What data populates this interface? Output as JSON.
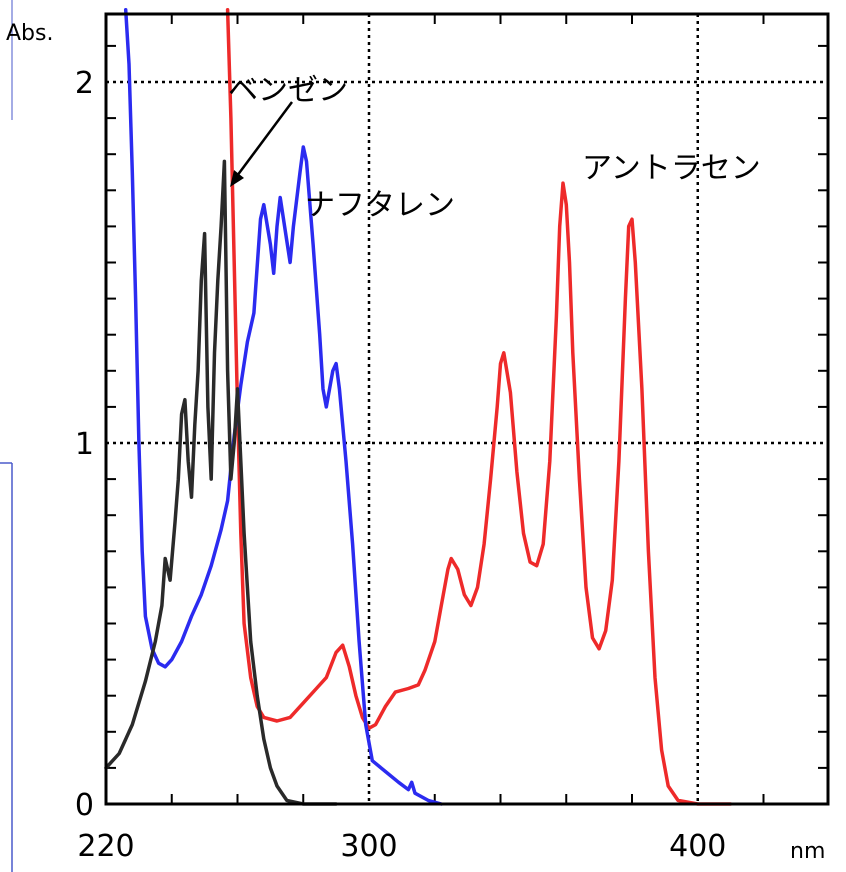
{
  "chart_data": {
    "type": "line",
    "ylabel": "Abs.",
    "xlabel": "nm",
    "xlim": [
      220,
      440
    ],
    "ylim": [
      0,
      2.2
    ],
    "x_ticks": [
      220,
      300,
      400
    ],
    "y_ticks": [
      0,
      1,
      2
    ],
    "grid": true,
    "annotations": [
      "ベンゼン",
      "ナフタレン",
      "アントラセン"
    ],
    "series": [
      {
        "name": "ベンゼン",
        "color": "#2a2a2a",
        "points": [
          [
            220,
            0.1
          ],
          [
            224,
            0.14
          ],
          [
            228,
            0.22
          ],
          [
            232,
            0.34
          ],
          [
            235,
            0.45
          ],
          [
            237,
            0.55
          ],
          [
            238,
            0.68
          ],
          [
            239.5,
            0.62
          ],
          [
            241,
            0.78
          ],
          [
            242,
            0.9
          ],
          [
            243,
            1.08
          ],
          [
            244,
            1.12
          ],
          [
            245,
            0.95
          ],
          [
            246,
            0.85
          ],
          [
            247,
            1.05
          ],
          [
            248,
            1.2
          ],
          [
            249,
            1.45
          ],
          [
            250,
            1.58
          ],
          [
            251,
            1.1
          ],
          [
            252,
            0.9
          ],
          [
            253,
            1.25
          ],
          [
            254,
            1.45
          ],
          [
            255,
            1.6
          ],
          [
            256,
            1.78
          ],
          [
            257,
            1.2
          ],
          [
            258,
            0.9
          ],
          [
            259,
            1.0
          ],
          [
            260,
            1.15
          ],
          [
            261,
            0.95
          ],
          [
            262,
            0.75
          ],
          [
            263,
            0.6
          ],
          [
            264,
            0.45
          ],
          [
            266,
            0.3
          ],
          [
            268,
            0.18
          ],
          [
            270,
            0.1
          ],
          [
            272,
            0.05
          ],
          [
            275,
            0.01
          ],
          [
            280,
            0.0
          ],
          [
            290,
            0.0
          ]
        ]
      },
      {
        "name": "ナフタレン",
        "color": "#2b2bf0",
        "points": [
          [
            226,
            2.2
          ],
          [
            227,
            2.05
          ],
          [
            228,
            1.75
          ],
          [
            229,
            1.4
          ],
          [
            230,
            1.0
          ],
          [
            231,
            0.7
          ],
          [
            232,
            0.52
          ],
          [
            234,
            0.43
          ],
          [
            236,
            0.39
          ],
          [
            238,
            0.38
          ],
          [
            240,
            0.4
          ],
          [
            243,
            0.45
          ],
          [
            246,
            0.52
          ],
          [
            249,
            0.58
          ],
          [
            252,
            0.66
          ],
          [
            255,
            0.76
          ],
          [
            257,
            0.84
          ],
          [
            259,
            1.02
          ],
          [
            261,
            1.16
          ],
          [
            263,
            1.28
          ],
          [
            265,
            1.36
          ],
          [
            267,
            1.62
          ],
          [
            268,
            1.66
          ],
          [
            270,
            1.55
          ],
          [
            271,
            1.47
          ],
          [
            272,
            1.6
          ],
          [
            273,
            1.68
          ],
          [
            275,
            1.56
          ],
          [
            276,
            1.5
          ],
          [
            277,
            1.6
          ],
          [
            279,
            1.75
          ],
          [
            280,
            1.82
          ],
          [
            281,
            1.78
          ],
          [
            283,
            1.55
          ],
          [
            285,
            1.3
          ],
          [
            286,
            1.15
          ],
          [
            287,
            1.1
          ],
          [
            289,
            1.2
          ],
          [
            290,
            1.22
          ],
          [
            291,
            1.15
          ],
          [
            293,
            0.95
          ],
          [
            295,
            0.72
          ],
          [
            297,
            0.45
          ],
          [
            299,
            0.22
          ],
          [
            301,
            0.12
          ],
          [
            305,
            0.09
          ],
          [
            309,
            0.06
          ],
          [
            312,
            0.04
          ],
          [
            313,
            0.06
          ],
          [
            314,
            0.03
          ],
          [
            318,
            0.01
          ],
          [
            322,
            0.0
          ]
        ]
      },
      {
        "name": "アントラセン",
        "color": "#ee2a2a",
        "points": [
          [
            257,
            2.2
          ],
          [
            258,
            1.9
          ],
          [
            259,
            1.5
          ],
          [
            260,
            1.1
          ],
          [
            261,
            0.75
          ],
          [
            262,
            0.5
          ],
          [
            264,
            0.35
          ],
          [
            266,
            0.27
          ],
          [
            268,
            0.24
          ],
          [
            272,
            0.23
          ],
          [
            276,
            0.24
          ],
          [
            280,
            0.28
          ],
          [
            284,
            0.32
          ],
          [
            287,
            0.35
          ],
          [
            290,
            0.42
          ],
          [
            292,
            0.44
          ],
          [
            294,
            0.38
          ],
          [
            296,
            0.3
          ],
          [
            298,
            0.24
          ],
          [
            300,
            0.21
          ],
          [
            302,
            0.22
          ],
          [
            305,
            0.27
          ],
          [
            308,
            0.31
          ],
          [
            312,
            0.32
          ],
          [
            315,
            0.33
          ],
          [
            317,
            0.37
          ],
          [
            320,
            0.45
          ],
          [
            322,
            0.55
          ],
          [
            324,
            0.65
          ],
          [
            325,
            0.68
          ],
          [
            327,
            0.65
          ],
          [
            329,
            0.58
          ],
          [
            331,
            0.55
          ],
          [
            333,
            0.6
          ],
          [
            335,
            0.72
          ],
          [
            337,
            0.9
          ],
          [
            339,
            1.1
          ],
          [
            340,
            1.22
          ],
          [
            341,
            1.25
          ],
          [
            343,
            1.14
          ],
          [
            345,
            0.92
          ],
          [
            347,
            0.75
          ],
          [
            349,
            0.67
          ],
          [
            351,
            0.66
          ],
          [
            353,
            0.72
          ],
          [
            355,
            0.95
          ],
          [
            357,
            1.35
          ],
          [
            358,
            1.6
          ],
          [
            359,
            1.72
          ],
          [
            360,
            1.66
          ],
          [
            361,
            1.5
          ],
          [
            362,
            1.25
          ],
          [
            364,
            0.9
          ],
          [
            366,
            0.6
          ],
          [
            368,
            0.46
          ],
          [
            370,
            0.43
          ],
          [
            372,
            0.48
          ],
          [
            374,
            0.62
          ],
          [
            376,
            0.95
          ],
          [
            378,
            1.4
          ],
          [
            379,
            1.6
          ],
          [
            380,
            1.62
          ],
          [
            381,
            1.5
          ],
          [
            383,
            1.15
          ],
          [
            385,
            0.7
          ],
          [
            387,
            0.35
          ],
          [
            389,
            0.15
          ],
          [
            391,
            0.05
          ],
          [
            394,
            0.01
          ],
          [
            400,
            0.0
          ],
          [
            410,
            0.0
          ]
        ]
      }
    ]
  },
  "colors": {
    "grid": "#000000",
    "frame": "#000000",
    "side_rule": "#4a5acb"
  }
}
